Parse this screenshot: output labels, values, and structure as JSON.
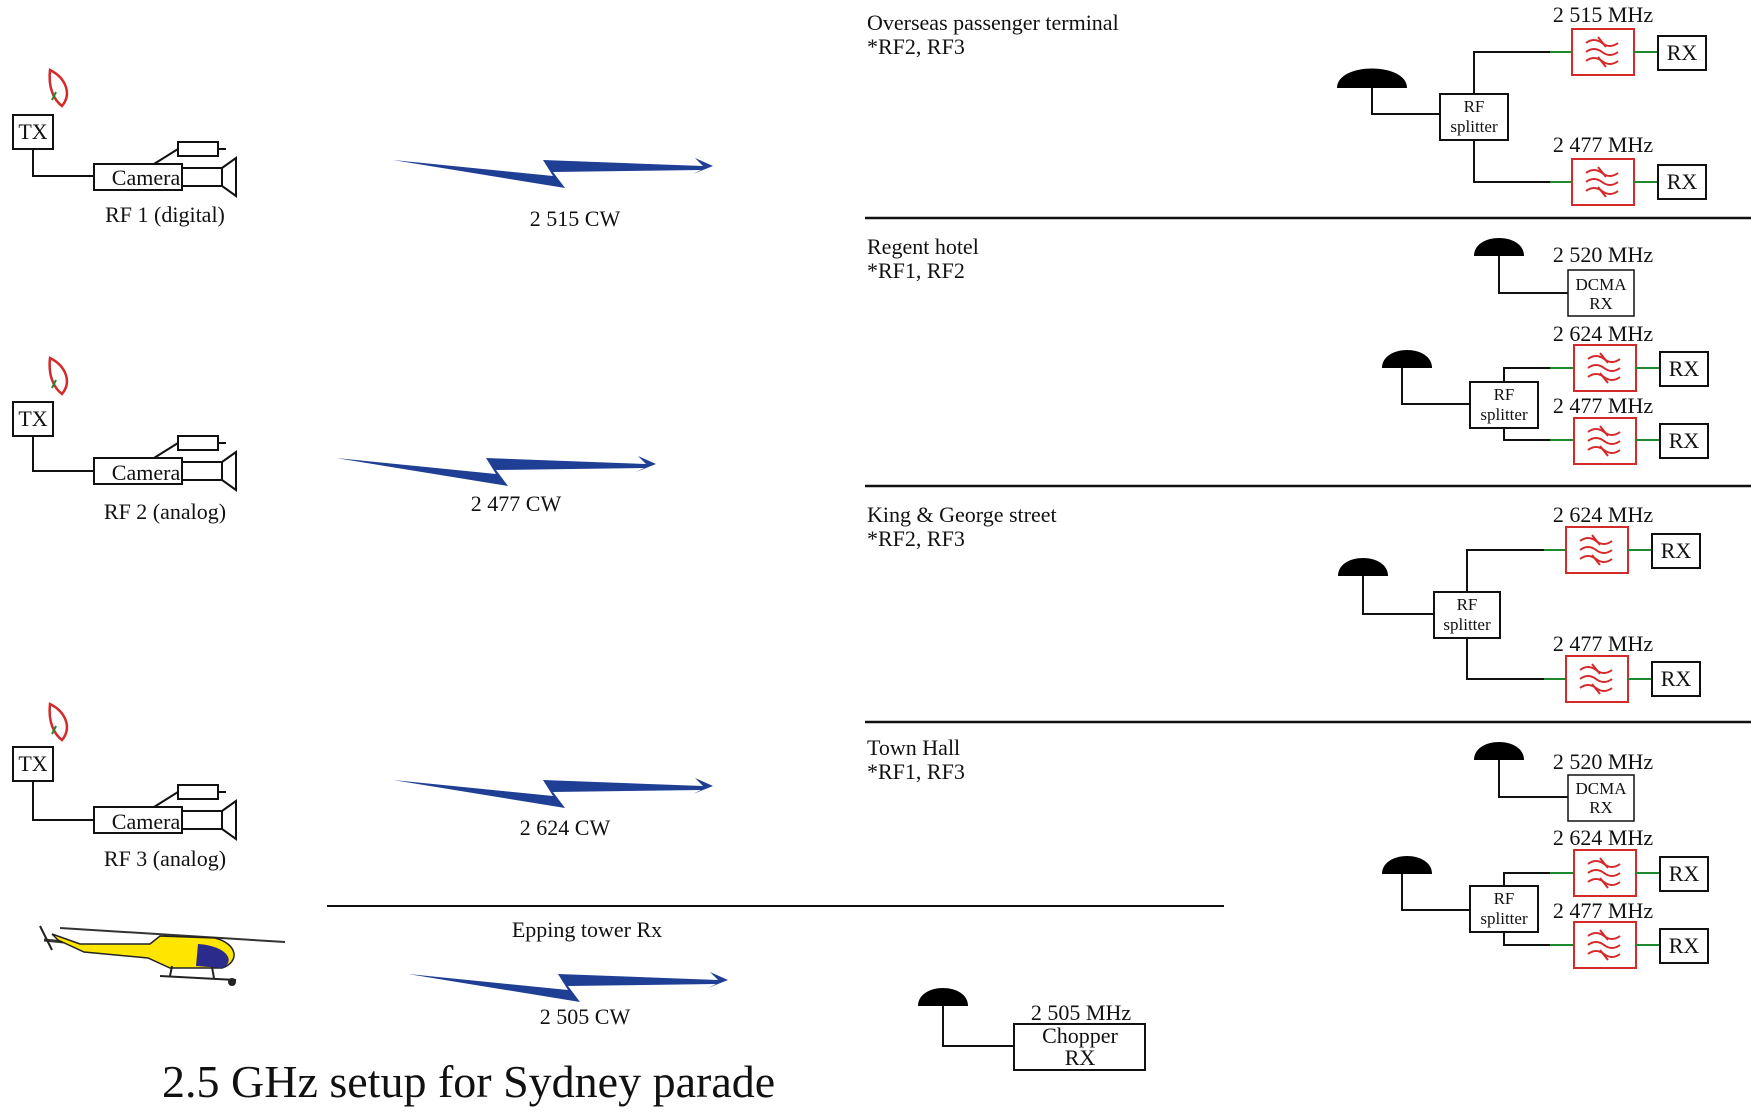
{
  "title": "2.5 GHz setup for Sydney parade",
  "transmitters": [
    {
      "tx_label": "TX",
      "camera_label": "Camera",
      "name": "RF 1 (digital)",
      "link": "2 515 CW"
    },
    {
      "tx_label": "TX",
      "camera_label": "Camera",
      "name": "RF 2 (analog)",
      "link": "2 477 CW"
    },
    {
      "tx_label": "TX",
      "camera_label": "Camera",
      "name": "RF 3 (analog)",
      "link": "2 624 CW"
    }
  ],
  "helicopter_link": "2 505 CW",
  "epping": {
    "label": "Epping tower Rx",
    "freq": "2 505 MHz",
    "rx_line1": "Chopper",
    "rx_line2": "RX"
  },
  "sites": [
    {
      "name": "Overseas passenger terminal",
      "rf": "*RF2, RF3",
      "splitter": [
        "RF",
        "splitter"
      ],
      "branches": [
        {
          "freq": "2 515 MHz",
          "rx": "RX"
        },
        {
          "freq": "2 477 MHz",
          "rx": "RX"
        }
      ]
    },
    {
      "name": "Regent hotel",
      "rf": "*RF1, RF2",
      "dcma": {
        "freq": "2 520 MHz",
        "line1": "DCMA",
        "line2": "RX"
      },
      "splitter": [
        "RF",
        "splitter"
      ],
      "branches": [
        {
          "freq": "2 624 MHz",
          "rx": "RX"
        },
        {
          "freq": "2 477 MHz",
          "rx": "RX"
        }
      ]
    },
    {
      "name": "King & George street",
      "rf": "*RF2, RF3",
      "splitter": [
        "RF",
        "splitter"
      ],
      "branches": [
        {
          "freq": "2 624 MHz",
          "rx": "RX"
        },
        {
          "freq": "2 477 MHz",
          "rx": "RX"
        }
      ]
    },
    {
      "name": "Town Hall",
      "rf": "*RF1, RF3",
      "dcma": {
        "freq": "2 520 MHz",
        "line1": "DCMA",
        "line2": "RX"
      },
      "splitter": [
        "RF",
        "splitter"
      ],
      "branches": [
        {
          "freq": "2 624 MHz",
          "rx": "RX"
        },
        {
          "freq": "2 477 MHz",
          "rx": "RX"
        }
      ]
    }
  ],
  "colors": {
    "link": "#1f3f95",
    "filter": "#d42a2a",
    "wire_green": "#1f8a2b",
    "heli_body": "#ffe600",
    "heli_nose": "#2b2b8c",
    "line": "#111111"
  }
}
